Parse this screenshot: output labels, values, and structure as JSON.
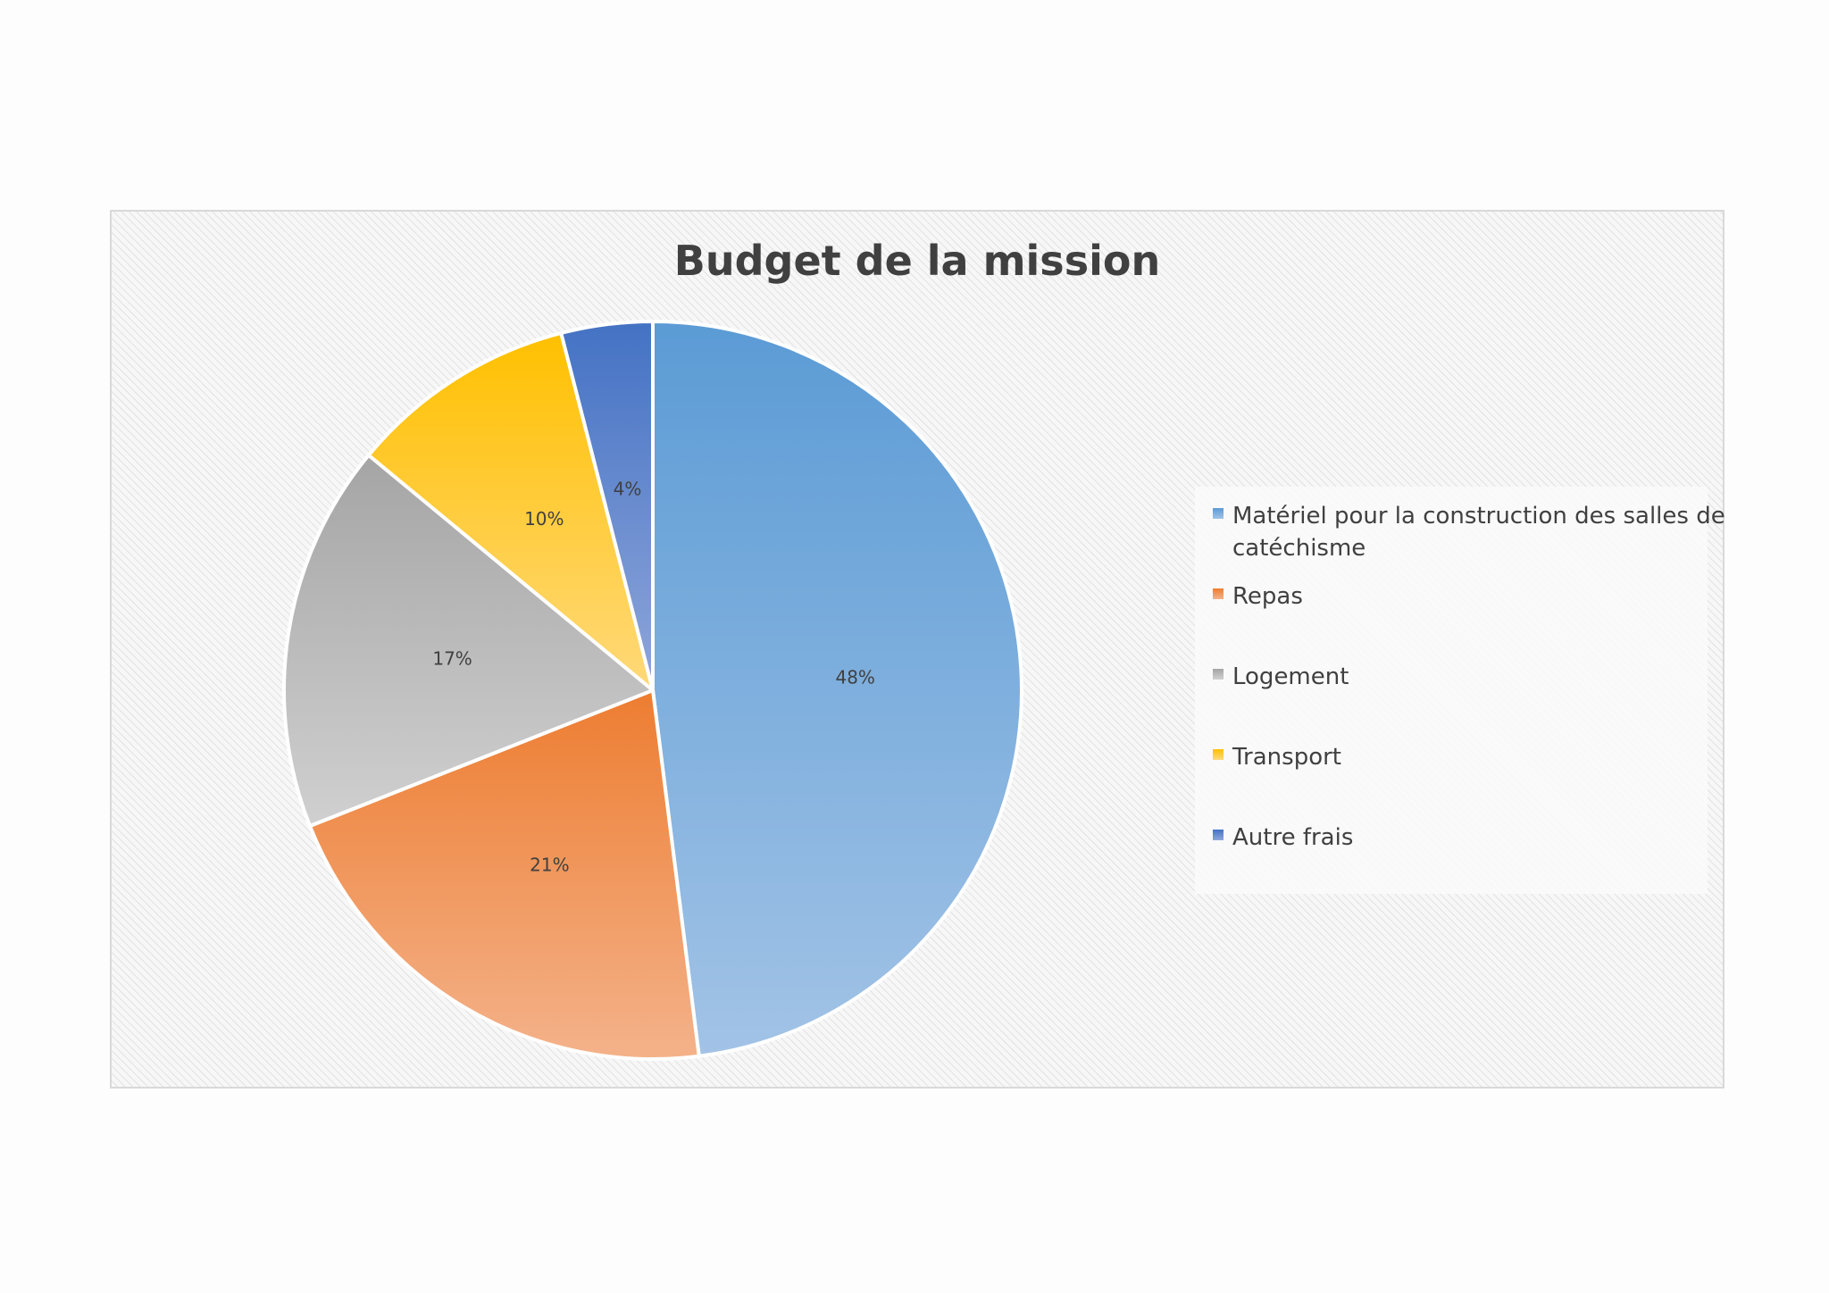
{
  "chart_data": {
    "type": "pie",
    "title": "Budget de la mission",
    "categories": [
      "Matériel pour la construction des salles de catéchisme",
      "Repas",
      "Logement",
      "Transport",
      "Autre frais"
    ],
    "values": [
      48,
      21,
      17,
      10,
      4
    ],
    "data_labels": [
      "48%",
      "21%",
      "17%",
      "10%",
      "4%"
    ],
    "legend_position": "right",
    "colors": [
      "#5b9bd5",
      "#ed7d31",
      "#a5a5a5",
      "#ffc000",
      "#4472c4"
    ]
  }
}
